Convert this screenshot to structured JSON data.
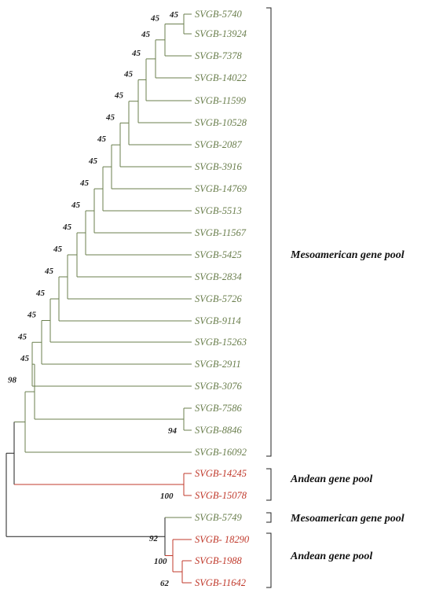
{
  "leaves": [
    {
      "label": "SVGB-5740",
      "group": "meso"
    },
    {
      "label": "SVGB-13924",
      "group": "meso"
    },
    {
      "label": "SVGB-7378",
      "group": "meso"
    },
    {
      "label": "SVGB-14022",
      "group": "meso"
    },
    {
      "label": "SVGB-11599",
      "group": "meso"
    },
    {
      "label": "SVGB-10528",
      "group": "meso"
    },
    {
      "label": "SVGB-2087",
      "group": "meso"
    },
    {
      "label": "SVGB-3916",
      "group": "meso"
    },
    {
      "label": "SVGB-14769",
      "group": "meso"
    },
    {
      "label": "SVGB-5513",
      "group": "meso"
    },
    {
      "label": "SVGB-11567",
      "group": "meso"
    },
    {
      "label": "SVGB-5425",
      "group": "meso"
    },
    {
      "label": "SVGB-2834",
      "group": "meso"
    },
    {
      "label": "SVGB-5726",
      "group": "meso"
    },
    {
      "label": "SVGB-9114",
      "group": "meso"
    },
    {
      "label": "SVGB-15263",
      "group": "meso"
    },
    {
      "label": "SVGB-2911",
      "group": "meso"
    },
    {
      "label": "SVGB-3076",
      "group": "meso"
    },
    {
      "label": "SVGB-7586",
      "group": "meso"
    },
    {
      "label": "SVGB-8846",
      "group": "meso"
    },
    {
      "label": "SVGB-16092",
      "group": "meso"
    },
    {
      "label": "SVGB-14245",
      "group": "andean"
    },
    {
      "label": "SVGB-15078",
      "group": "andean"
    },
    {
      "label": "SVGB-5749",
      "group": "meso"
    },
    {
      "label": "SVGB- 18290",
      "group": "andean"
    },
    {
      "label": "SVGB-1988",
      "group": "andean"
    },
    {
      "label": "SVGB-11642",
      "group": "andean"
    }
  ],
  "bootstrap": [
    "45",
    "45",
    "45",
    "45",
    "45",
    "45",
    "45",
    "45",
    "45",
    "45",
    "45",
    "45",
    "45",
    "45",
    "45",
    "45",
    "45",
    "45",
    "94",
    "98",
    "100",
    "92",
    "100",
    "62"
  ],
  "groups": [
    {
      "label": "Mesoamerican gene pool"
    },
    {
      "label": "Andean gene pool"
    },
    {
      "label": "Mesoamerican gene pool"
    },
    {
      "label": "Andean gene pool"
    }
  ],
  "colors": {
    "mesoamerican": "#6b7f4e",
    "andean": "#c0392b",
    "backbone": "#222222"
  }
}
